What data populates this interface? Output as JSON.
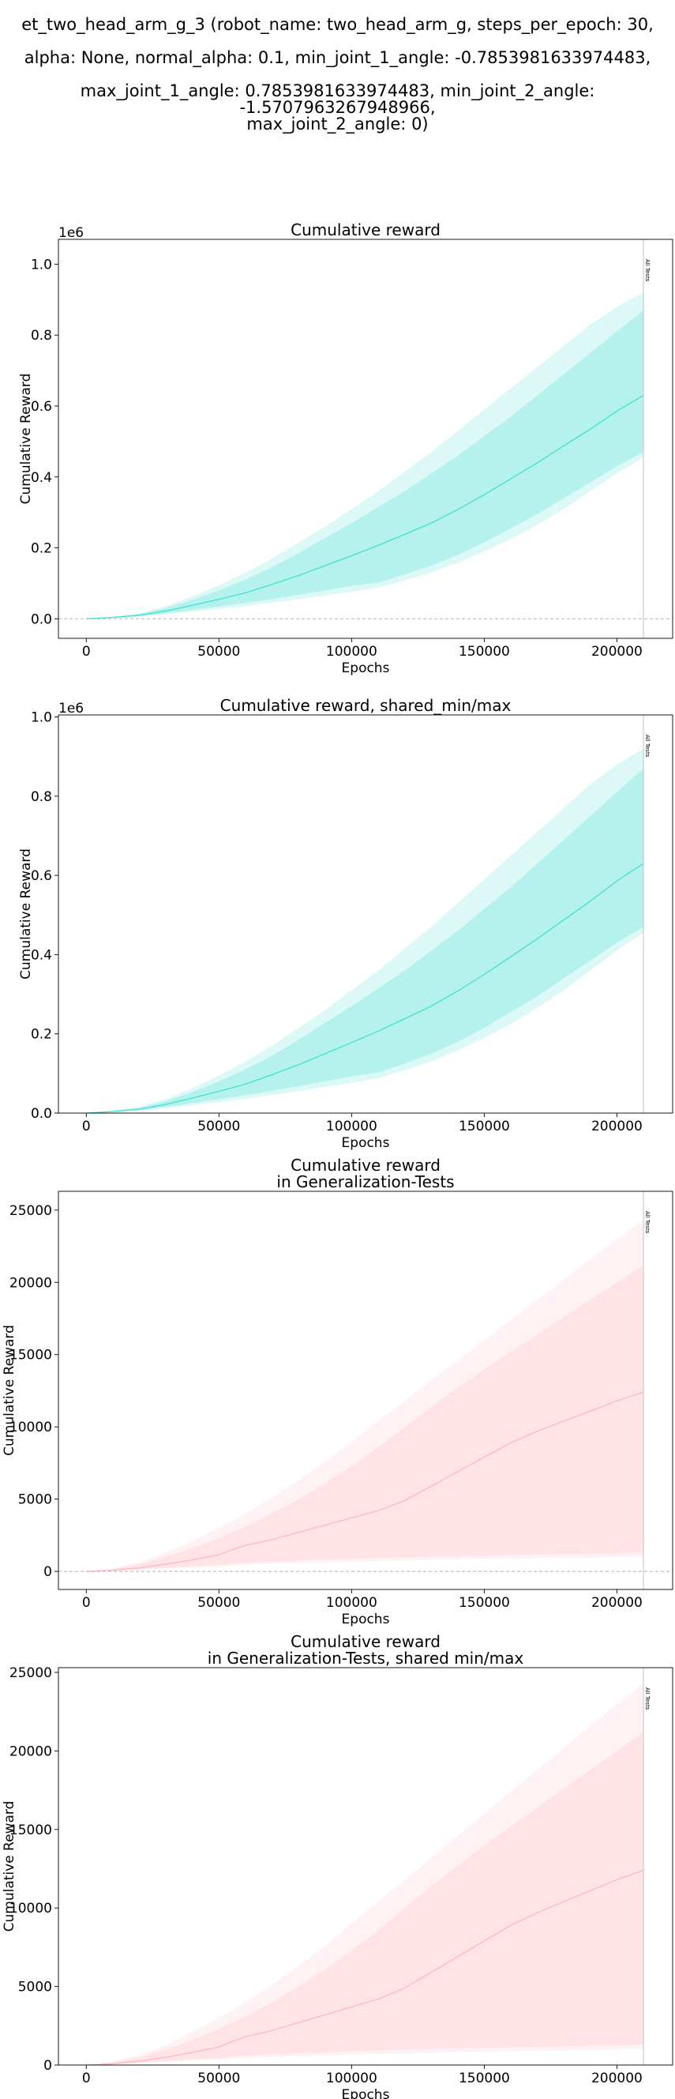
{
  "suptitle": [
    "et_two_head_arm_g_3 (robot_name: two_head_arm_g, steps_per_epoch: 30,",
    "alpha: None, normal_alpha: 0.1, min_joint_1_angle: -0.7853981633974483,",
    "max_joint_1_angle: 0.7853981633974483, min_joint_2_angle: -1.5707963267948966,",
    "max_joint_2_angle: 0)"
  ],
  "chart_data": [
    {
      "type": "line",
      "title": "Cumulative reward",
      "xlabel": "Epochs",
      "ylabel": "Cumulative Reward",
      "offset_label": "1e6",
      "vline_label": "All Tests",
      "xticks": [
        0,
        50000,
        100000,
        150000,
        200000
      ],
      "xtick_labels": [
        "0",
        "50000",
        "100000",
        "150000",
        "200000"
      ],
      "yticks": [
        0.0,
        0.2,
        0.4,
        0.6,
        0.8,
        1.0
      ],
      "ytick_labels": [
        "0.0",
        "0.2",
        "0.4",
        "0.6",
        "0.8",
        "1.0"
      ],
      "xlim": [
        -10500,
        221000
      ],
      "ylim": [
        -0.055,
        1.07
      ],
      "hline_zero": true,
      "vline_x": 210000,
      "color": "#40e0d0",
      "series": [
        {
          "x": [
            0,
            10000,
            20000,
            30000,
            40000,
            50000,
            60000,
            70000,
            80000,
            90000,
            100000,
            110000,
            120000,
            130000,
            140000,
            150000,
            160000,
            170000,
            180000,
            190000,
            200000,
            210000
          ],
          "mean": [
            0,
            0.004,
            0.01,
            0.022,
            0.038,
            0.055,
            0.073,
            0.097,
            0.122,
            0.15,
            0.178,
            0.207,
            0.238,
            0.27,
            0.308,
            0.35,
            0.395,
            0.44,
            0.488,
            0.535,
            0.586,
            0.63
          ],
          "std_low": [
            0,
            0.003,
            0.008,
            0.016,
            0.025,
            0.035,
            0.045,
            0.056,
            0.068,
            0.08,
            0.093,
            0.102,
            0.125,
            0.15,
            0.18,
            0.215,
            0.255,
            0.295,
            0.34,
            0.385,
            0.43,
            0.47
          ],
          "std_high": [
            0,
            0.005,
            0.013,
            0.03,
            0.053,
            0.08,
            0.11,
            0.145,
            0.185,
            0.228,
            0.27,
            0.315,
            0.36,
            0.41,
            0.46,
            0.515,
            0.57,
            0.63,
            0.69,
            0.75,
            0.81,
            0.87
          ],
          "min": [
            0,
            0.002,
            0.006,
            0.012,
            0.02,
            0.028,
            0.036,
            0.046,
            0.055,
            0.066,
            0.076,
            0.088,
            0.108,
            0.13,
            0.158,
            0.19,
            0.225,
            0.265,
            0.31,
            0.36,
            0.41,
            0.455
          ],
          "max": [
            0,
            0.006,
            0.016,
            0.036,
            0.063,
            0.095,
            0.13,
            0.17,
            0.215,
            0.26,
            0.31,
            0.36,
            0.415,
            0.47,
            0.53,
            0.59,
            0.65,
            0.71,
            0.77,
            0.83,
            0.88,
            0.92
          ]
        }
      ]
    },
    {
      "type": "line",
      "title": "Cumulative reward, shared_min/max",
      "xlabel": "Epochs",
      "ylabel": "Cumulative Reward",
      "offset_label": "1e6",
      "vline_label": "All Tests",
      "xticks": [
        0,
        50000,
        100000,
        150000,
        200000
      ],
      "xtick_labels": [
        "0",
        "50000",
        "100000",
        "150000",
        "200000"
      ],
      "yticks": [
        0.0,
        0.2,
        0.4,
        0.6,
        0.8,
        1.0
      ],
      "ytick_labels": [
        "0.0",
        "0.2",
        "0.4",
        "0.6",
        "0.8",
        "1.0"
      ],
      "xlim": [
        -10500,
        221000
      ],
      "ylim": [
        0.0,
        1.005
      ],
      "hline_zero": false,
      "vline_x": 210000,
      "color": "#40e0d0",
      "series": [
        {
          "x": [
            0,
            10000,
            20000,
            30000,
            40000,
            50000,
            60000,
            70000,
            80000,
            90000,
            100000,
            110000,
            120000,
            130000,
            140000,
            150000,
            160000,
            170000,
            180000,
            190000,
            200000,
            210000
          ],
          "mean": [
            0,
            0.004,
            0.01,
            0.022,
            0.038,
            0.055,
            0.073,
            0.097,
            0.122,
            0.15,
            0.178,
            0.207,
            0.238,
            0.27,
            0.308,
            0.35,
            0.395,
            0.44,
            0.488,
            0.535,
            0.586,
            0.63
          ],
          "std_low": [
            0,
            0.003,
            0.008,
            0.016,
            0.025,
            0.035,
            0.045,
            0.056,
            0.068,
            0.08,
            0.093,
            0.102,
            0.125,
            0.15,
            0.18,
            0.215,
            0.255,
            0.295,
            0.34,
            0.385,
            0.43,
            0.47
          ],
          "std_high": [
            0,
            0.005,
            0.013,
            0.03,
            0.053,
            0.08,
            0.11,
            0.145,
            0.185,
            0.228,
            0.27,
            0.315,
            0.36,
            0.41,
            0.46,
            0.515,
            0.57,
            0.63,
            0.69,
            0.75,
            0.81,
            0.87
          ],
          "min": [
            0,
            0.002,
            0.006,
            0.012,
            0.02,
            0.028,
            0.036,
            0.046,
            0.055,
            0.066,
            0.076,
            0.088,
            0.108,
            0.13,
            0.158,
            0.19,
            0.225,
            0.265,
            0.31,
            0.36,
            0.41,
            0.455
          ],
          "max": [
            0,
            0.006,
            0.016,
            0.036,
            0.063,
            0.095,
            0.13,
            0.17,
            0.215,
            0.26,
            0.31,
            0.36,
            0.415,
            0.47,
            0.53,
            0.59,
            0.65,
            0.71,
            0.77,
            0.83,
            0.88,
            0.92
          ]
        }
      ]
    },
    {
      "type": "line",
      "title": "Cumulative reward\nin Generalization-Tests",
      "xlabel": "Epochs",
      "ylabel": "Cumulative Reward",
      "offset_label": "",
      "vline_label": "All Tests",
      "xticks": [
        0,
        50000,
        100000,
        150000,
        200000
      ],
      "xtick_labels": [
        "0",
        "50000",
        "100000",
        "150000",
        "200000"
      ],
      "yticks": [
        0,
        5000,
        10000,
        15000,
        20000,
        25000
      ],
      "ytick_labels": [
        "0",
        "5000",
        "10000",
        "15000",
        "20000",
        "25000"
      ],
      "xlim": [
        -10500,
        221000
      ],
      "ylim": [
        -1250,
        26300
      ],
      "hline_zero": true,
      "vline_x": 210000,
      "color": "#ffb6c1",
      "series": [
        {
          "x": [
            0,
            10000,
            20000,
            30000,
            40000,
            50000,
            55000,
            60000,
            70000,
            80000,
            90000,
            100000,
            110000,
            120000,
            130000,
            140000,
            150000,
            160000,
            170000,
            180000,
            190000,
            200000,
            210000
          ],
          "mean": [
            0,
            80,
            250,
            500,
            800,
            1150,
            1500,
            1800,
            2200,
            2700,
            3200,
            3700,
            4200,
            4900,
            5900,
            6900,
            7900,
            8900,
            9700,
            10400,
            11100,
            11800,
            12400
          ],
          "std_low": [
            0,
            50,
            150,
            250,
            350,
            450,
            520,
            600,
            680,
            750,
            820,
            880,
            940,
            990,
            1030,
            1070,
            1100,
            1130,
            1160,
            1190,
            1220,
            1250,
            1300
          ],
          "std_high": [
            0,
            150,
            500,
            1000,
            1600,
            2300,
            2700,
            3100,
            4000,
            5000,
            6100,
            7300,
            8600,
            10000,
            11400,
            12700,
            14000,
            15200,
            16400,
            17600,
            18800,
            20000,
            21200
          ],
          "min": [
            0,
            40,
            120,
            200,
            280,
            350,
            400,
            450,
            510,
            560,
            610,
            660,
            700,
            740,
            780,
            810,
            840,
            870,
            900,
            930,
            960,
            990,
            1020
          ],
          "max": [
            0,
            200,
            650,
            1300,
            2100,
            3000,
            3500,
            4000,
            5100,
            6300,
            7600,
            9000,
            10400,
            11800,
            13200,
            14600,
            16000,
            17400,
            18800,
            20200,
            21600,
            23000,
            24300
          ]
        }
      ]
    },
    {
      "type": "line",
      "title": "Cumulative reward\nin Generalization-Tests, shared min/max",
      "xlabel": "Epochs",
      "ylabel": "Cumulative Reward",
      "offset_label": "",
      "vline_label": "All Tests",
      "xticks": [
        0,
        50000,
        100000,
        150000,
        200000
      ],
      "xtick_labels": [
        "0",
        "50000",
        "100000",
        "150000",
        "200000"
      ],
      "yticks": [
        0,
        5000,
        10000,
        15000,
        20000,
        25000
      ],
      "ytick_labels": [
        "0",
        "5000",
        "10000",
        "15000",
        "20000",
        "25000"
      ],
      "xlim": [
        -10500,
        221000
      ],
      "ylim": [
        0,
        25300
      ],
      "hline_zero": false,
      "vline_x": 210000,
      "color": "#ffb6c1",
      "series": [
        {
          "x": [
            0,
            10000,
            20000,
            30000,
            40000,
            50000,
            55000,
            60000,
            70000,
            80000,
            90000,
            100000,
            110000,
            120000,
            130000,
            140000,
            150000,
            160000,
            170000,
            180000,
            190000,
            200000,
            210000
          ],
          "mean": [
            0,
            80,
            250,
            500,
            800,
            1150,
            1500,
            1800,
            2200,
            2700,
            3200,
            3700,
            4200,
            4900,
            5900,
            6900,
            7900,
            8900,
            9700,
            10400,
            11100,
            11800,
            12400
          ],
          "std_low": [
            0,
            50,
            150,
            250,
            350,
            450,
            520,
            600,
            680,
            750,
            820,
            880,
            940,
            990,
            1030,
            1070,
            1100,
            1130,
            1160,
            1190,
            1220,
            1250,
            1300
          ],
          "std_high": [
            0,
            150,
            500,
            1000,
            1600,
            2300,
            2700,
            3100,
            4000,
            5000,
            6100,
            7300,
            8600,
            10000,
            11400,
            12700,
            14000,
            15200,
            16400,
            17600,
            18800,
            20000,
            21200
          ],
          "min": [
            0,
            40,
            120,
            200,
            280,
            350,
            400,
            450,
            510,
            560,
            610,
            660,
            700,
            740,
            780,
            810,
            840,
            870,
            900,
            930,
            960,
            990,
            1020
          ],
          "max": [
            0,
            200,
            650,
            1300,
            2100,
            3000,
            3500,
            4000,
            5100,
            6300,
            7600,
            9000,
            10400,
            11800,
            13200,
            14600,
            16000,
            17400,
            18800,
            20200,
            21600,
            23000,
            24300
          ]
        }
      ]
    }
  ]
}
